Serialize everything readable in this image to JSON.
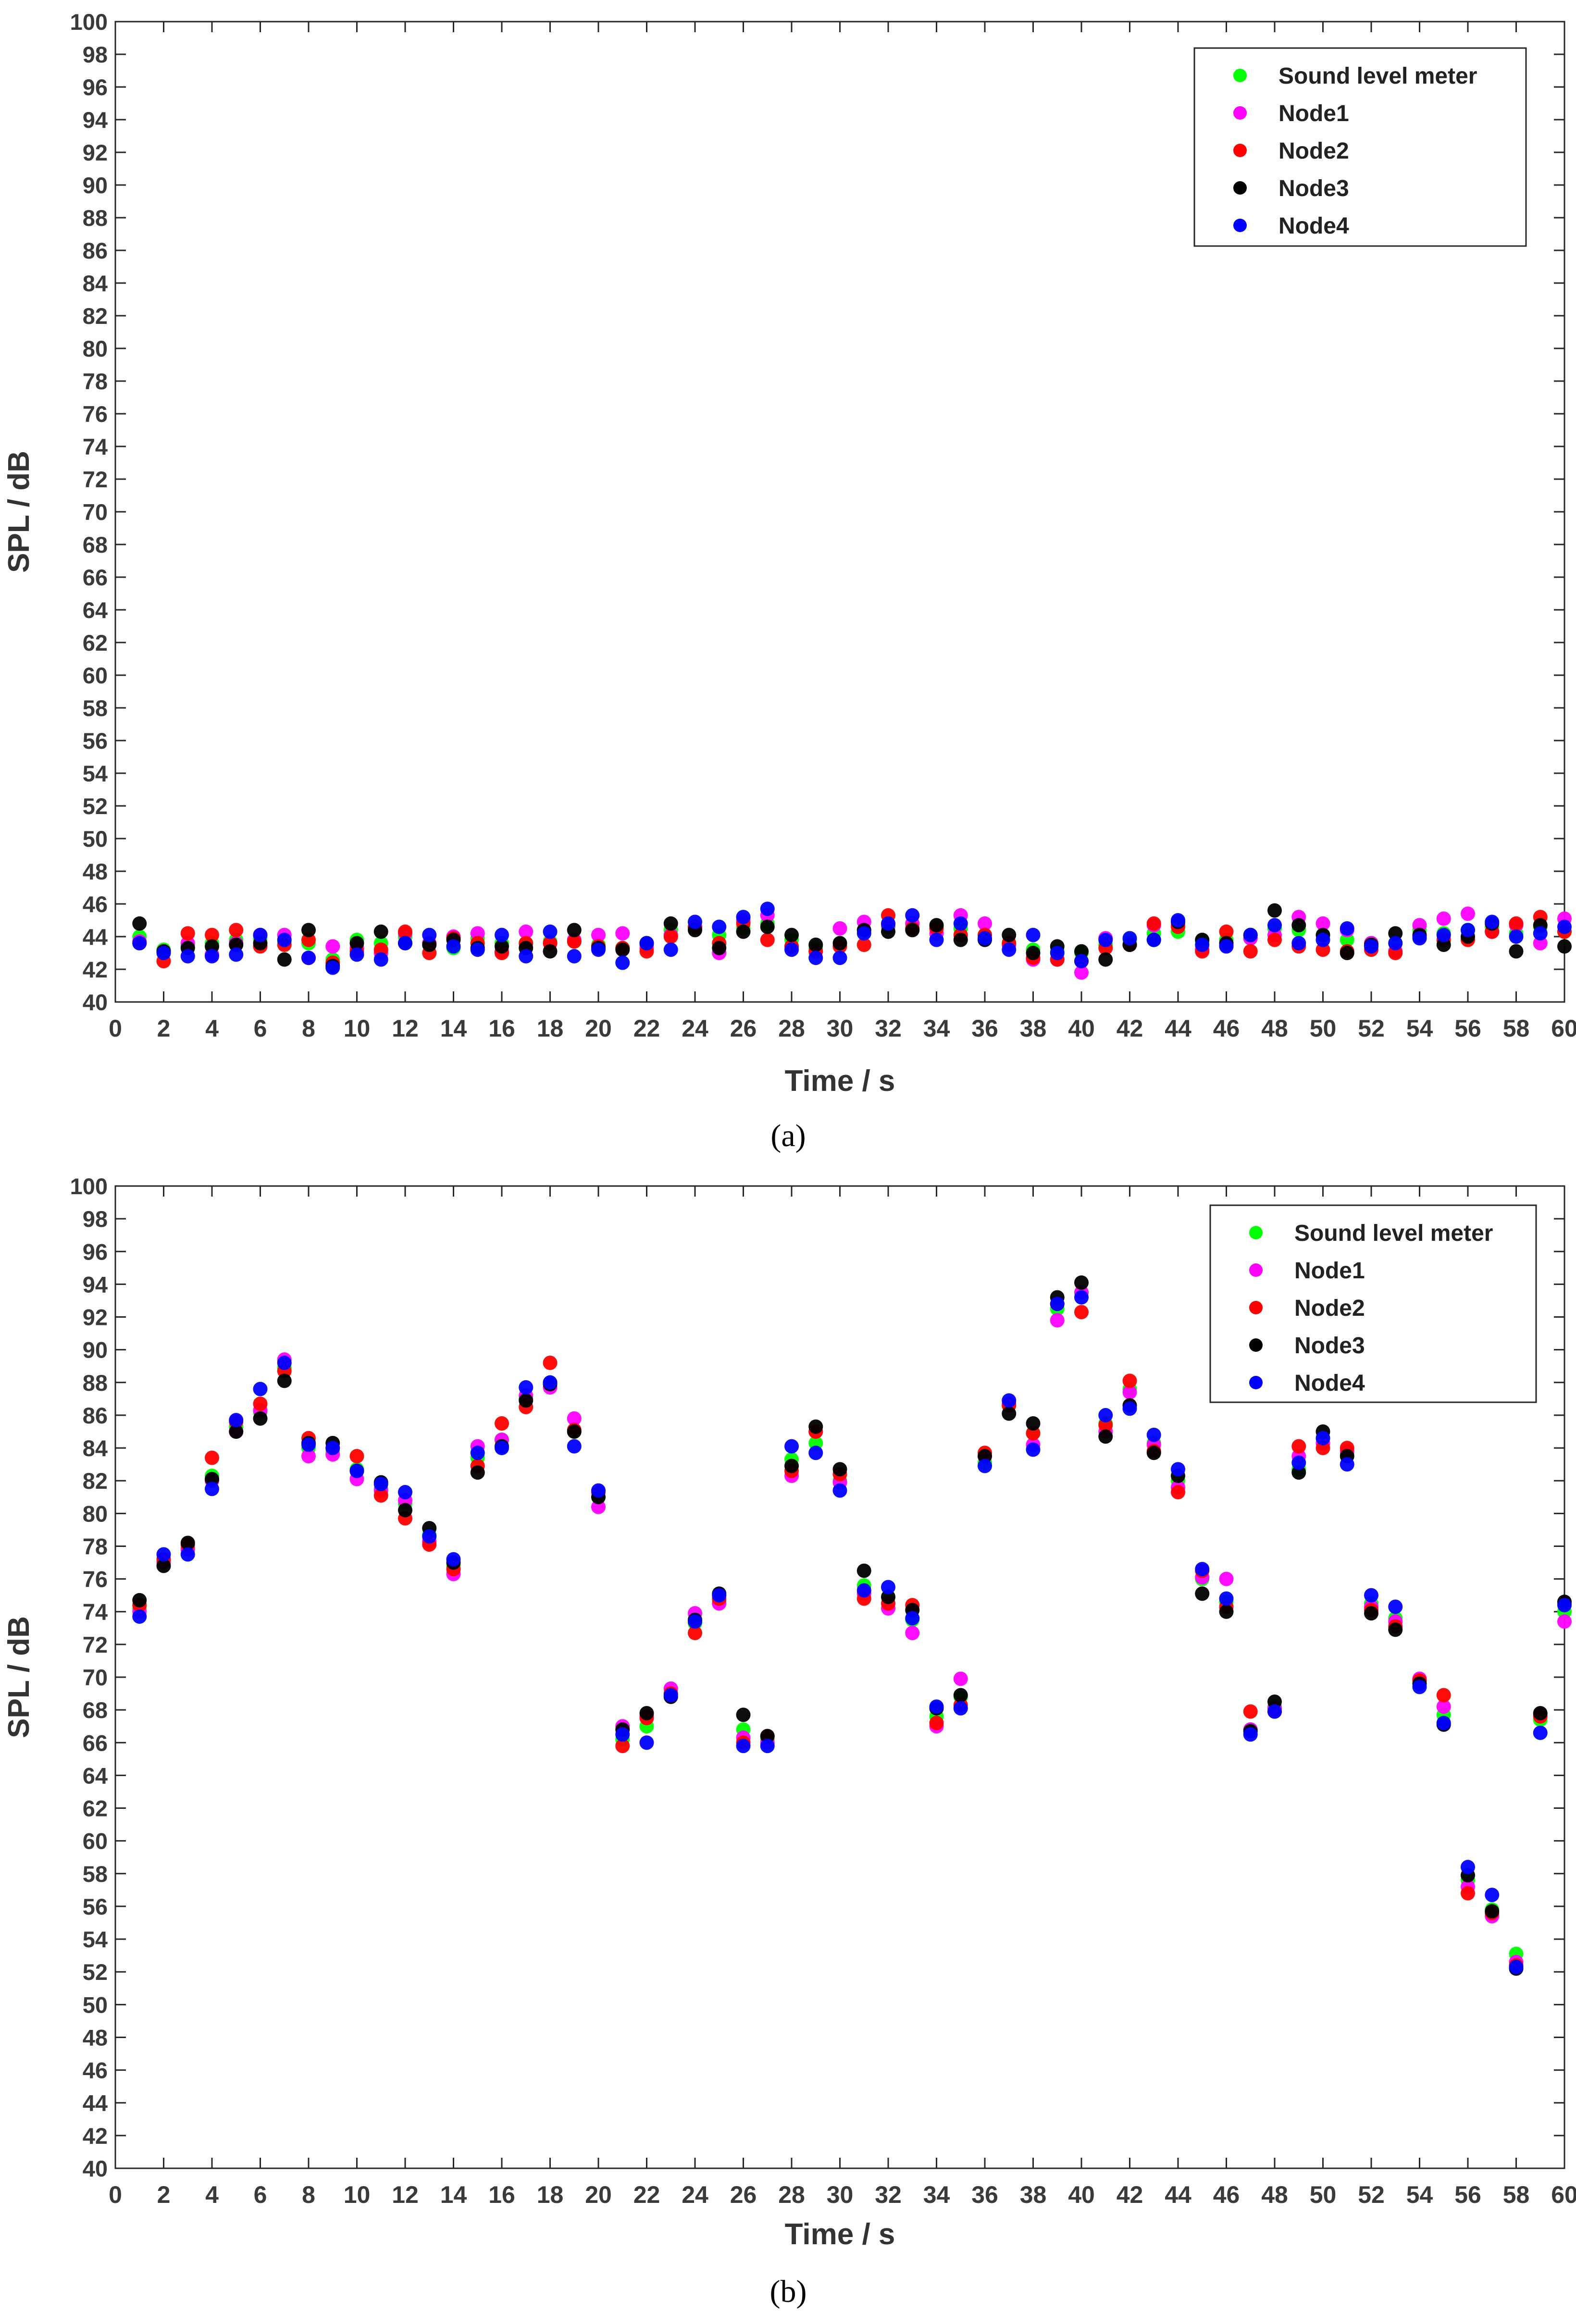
{
  "captions": [
    "(a)",
    "(b)"
  ],
  "chart_data": [
    {
      "type": "scatter",
      "caption": "(a)",
      "xlabel": "Time / s",
      "ylabel": "SPL / dB",
      "xlim": [
        0,
        60
      ],
      "ylim": [
        40,
        100
      ],
      "xticks": [
        0,
        2,
        4,
        6,
        8,
        10,
        12,
        14,
        16,
        18,
        20,
        22,
        24,
        26,
        28,
        30,
        32,
        34,
        36,
        38,
        40,
        42,
        44,
        46,
        48,
        50,
        52,
        54,
        56,
        58,
        60
      ],
      "yticks": [
        40,
        42,
        44,
        46,
        48,
        50,
        52,
        54,
        56,
        58,
        60,
        62,
        64,
        66,
        68,
        70,
        72,
        74,
        76,
        78,
        80,
        82,
        84,
        86,
        88,
        90,
        92,
        94,
        96,
        98,
        100
      ],
      "grid": false,
      "legend_position": "top-right",
      "x": [
        1,
        2,
        3,
        4,
        5,
        6,
        7,
        8,
        9,
        10,
        11,
        12,
        13,
        14,
        15,
        16,
        17,
        18,
        19,
        20,
        21,
        22,
        23,
        24,
        25,
        26,
        27,
        28,
        29,
        30,
        31,
        32,
        33,
        34,
        35,
        36,
        37,
        38,
        39,
        40,
        41,
        42,
        43,
        44,
        45,
        46,
        47,
        48,
        49,
        50,
        51,
        52,
        53,
        54,
        55,
        56,
        57,
        58,
        59,
        60
      ],
      "series": [
        {
          "name": "Sound level meter",
          "color": "#00ff00",
          "values": [
            44.0,
            43.2,
            43.4,
            43.6,
            43.8,
            43.9,
            43.7,
            43.6,
            42.6,
            43.8,
            43.6,
            44.0,
            43.6,
            43.3,
            43.9,
            43.6,
            43.6,
            43.7,
            43.7,
            43.5,
            43.3,
            43.5,
            44.4,
            44.5,
            44.1,
            44.5,
            44.8,
            43.8,
            43.3,
            43.6,
            44.4,
            44.6,
            44.8,
            44.6,
            44.5,
            44.1,
            43.6,
            43.2,
            43.1,
            43.0,
            43.5,
            43.8,
            44.2,
            44.3,
            43.7,
            43.8,
            43.9,
            44.5,
            44.4,
            44.1,
            43.8,
            43.6,
            43.6,
            44.4,
            44.2,
            44.4,
            44.6,
            44.2,
            44.6,
            44.3
          ]
        },
        {
          "name": "Node1",
          "color": "#ff00ff",
          "values": [
            43.7,
            43.1,
            43.6,
            42.9,
            43.6,
            44.1,
            44.1,
            42.7,
            43.4,
            43.3,
            43.0,
            44.2,
            43.6,
            44.0,
            44.2,
            43.1,
            44.3,
            43.6,
            43.8,
            44.1,
            44.2,
            43.3,
            44.1,
            44.6,
            43.0,
            45.0,
            45.3,
            43.4,
            43.1,
            44.5,
            44.9,
            44.7,
            44.8,
            44.2,
            45.3,
            44.8,
            43.5,
            42.6,
            42.6,
            41.8,
            43.9,
            43.5,
            44.7,
            44.7,
            43.2,
            43.5,
            43.9,
            44.1,
            45.2,
            44.8,
            44.4,
            43.6,
            43.1,
            44.7,
            45.1,
            45.4,
            44.3,
            44.7,
            43.6,
            45.1
          ]
        },
        {
          "name": "Node2",
          "color": "#ff0000",
          "values": [
            43.6,
            42.5,
            44.2,
            44.1,
            44.4,
            43.4,
            43.5,
            43.8,
            42.4,
            43.1,
            43.2,
            44.3,
            43.0,
            43.9,
            43.6,
            43.0,
            43.6,
            43.6,
            43.7,
            43.4,
            43.3,
            43.1,
            44.0,
            44.6,
            43.6,
            44.8,
            43.8,
            43.4,
            43.1,
            43.4,
            43.5,
            45.3,
            44.5,
            44.5,
            44.1,
            44.1,
            43.6,
            42.7,
            42.6,
            42.5,
            43.3,
            43.5,
            44.8,
            44.6,
            43.1,
            44.3,
            43.1,
            43.8,
            43.4,
            43.2,
            43.1,
            43.2,
            43.0,
            44.0,
            43.8,
            43.8,
            44.3,
            44.8,
            45.2,
            44.3
          ]
        },
        {
          "name": "Node3",
          "color": "#000000",
          "values": [
            44.8,
            43.1,
            43.3,
            43.4,
            43.5,
            43.6,
            42.6,
            44.4,
            42.2,
            43.6,
            44.3,
            43.6,
            43.5,
            43.8,
            43.3,
            43.4,
            43.3,
            43.1,
            44.4,
            43.3,
            43.2,
            43.6,
            44.8,
            44.4,
            43.3,
            44.3,
            44.6,
            44.1,
            43.5,
            43.6,
            44.4,
            44.3,
            44.4,
            44.7,
            43.8,
            43.8,
            44.1,
            43.0,
            43.4,
            43.1,
            42.6,
            43.5,
            43.8,
            44.9,
            43.8,
            43.6,
            44.1,
            45.6,
            44.7,
            44.1,
            43.0,
            43.5,
            44.2,
            44.1,
            43.5,
            44.0,
            44.8,
            43.1,
            44.7,
            43.4
          ]
        },
        {
          "name": "Node4",
          "color": "#0000ff",
          "values": [
            43.6,
            43.0,
            42.8,
            42.8,
            42.9,
            44.1,
            43.8,
            42.7,
            42.1,
            42.9,
            42.6,
            43.6,
            44.1,
            43.4,
            43.2,
            44.1,
            42.8,
            44.3,
            42.8,
            43.2,
            42.4,
            43.6,
            43.2,
            44.9,
            44.6,
            45.2,
            45.7,
            43.2,
            42.7,
            42.7,
            44.2,
            44.8,
            45.3,
            43.8,
            44.8,
            43.9,
            43.2,
            44.1,
            43.0,
            42.5,
            43.8,
            43.9,
            43.8,
            45.0,
            43.5,
            43.4,
            44.1,
            44.7,
            43.6,
            43.8,
            44.5,
            43.4,
            43.6,
            43.9,
            44.1,
            44.4,
            44.9,
            44.0,
            44.2,
            44.6
          ]
        }
      ]
    },
    {
      "type": "scatter",
      "caption": "(b)",
      "xlabel": "Time / s",
      "ylabel": "SPL / dB",
      "xlim": [
        0,
        60
      ],
      "ylim": [
        40,
        100
      ],
      "xticks": [
        0,
        2,
        4,
        6,
        8,
        10,
        12,
        14,
        16,
        18,
        20,
        22,
        24,
        26,
        28,
        30,
        32,
        34,
        36,
        38,
        40,
        42,
        44,
        46,
        48,
        50,
        52,
        54,
        56,
        58,
        60
      ],
      "yticks": [
        40,
        42,
        44,
        46,
        48,
        50,
        52,
        54,
        56,
        58,
        60,
        62,
        64,
        66,
        68,
        70,
        72,
        74,
        76,
        78,
        80,
        82,
        84,
        86,
        88,
        90,
        92,
        94,
        96,
        98,
        100
      ],
      "grid": false,
      "legend_position": "top-right",
      "x": [
        1,
        2,
        3,
        4,
        5,
        6,
        7,
        8,
        9,
        10,
        11,
        12,
        13,
        14,
        15,
        16,
        17,
        18,
        19,
        20,
        21,
        22,
        23,
        24,
        25,
        26,
        27,
        28,
        29,
        30,
        31,
        32,
        33,
        34,
        35,
        36,
        37,
        38,
        39,
        40,
        41,
        42,
        43,
        44,
        45,
        46,
        47,
        48,
        49,
        50,
        51,
        52,
        53,
        54,
        55,
        56,
        57,
        58,
        59,
        60
      ],
      "series": [
        {
          "name": "Sound level meter",
          "color": "#00ff00",
          "values": [
            74.2,
            77.2,
            77.9,
            82.3,
            85.3,
            86.2,
            88.9,
            84.0,
            83.8,
            82.7,
            81.5,
            80.6,
            78.7,
            76.8,
            83.4,
            84.5,
            87.0,
            88.0,
            85.0,
            81.0,
            66.2,
            67.0,
            69.0,
            73.3,
            74.6,
            66.8,
            66.2,
            83.3,
            84.3,
            82.0,
            75.6,
            74.9,
            73.5,
            67.6,
            68.8,
            83.1,
            86.6,
            84.9,
            92.5,
            93.5,
            85.5,
            87.6,
            84.3,
            82.0,
            76.0,
            74.6,
            66.8,
            68.2,
            82.7,
            84.6,
            83.6,
            74.5,
            73.6,
            69.8,
            67.7,
            57.6,
            55.8,
            53.1,
            67.4,
            74.0
          ]
        },
        {
          "name": "Node1",
          "color": "#ff00ff",
          "values": [
            74.0,
            77.0,
            77.8,
            82.0,
            85.0,
            86.3,
            89.4,
            83.5,
            83.6,
            82.1,
            81.4,
            80.8,
            78.3,
            76.3,
            84.1,
            84.5,
            87.2,
            87.7,
            85.8,
            80.4,
            67.0,
            67.6,
            69.3,
            73.9,
            74.5,
            66.3,
            66.0,
            82.3,
            85.0,
            81.9,
            75.1,
            74.2,
            72.7,
            67.0,
            69.9,
            83.5,
            86.7,
            84.2,
            91.8,
            93.5,
            85.0,
            87.4,
            84.2,
            81.6,
            76.1,
            76.0,
            66.8,
            68.1,
            83.5,
            84.3,
            83.8,
            74.3,
            73.4,
            69.9,
            68.2,
            57.2,
            55.4,
            52.6,
            67.7,
            73.4
          ]
        },
        {
          "name": "Node2",
          "color": "#ff0000",
          "values": [
            74.4,
            77.2,
            78.1,
            83.4,
            85.6,
            86.7,
            88.7,
            84.6,
            84.0,
            83.5,
            81.1,
            79.7,
            78.1,
            76.6,
            82.9,
            85.5,
            86.5,
            89.2,
            85.1,
            81.3,
            65.8,
            67.5,
            69.0,
            72.7,
            74.8,
            66.0,
            66.4,
            82.6,
            85.0,
            82.4,
            74.8,
            74.5,
            74.4,
            67.2,
            68.3,
            83.7,
            86.6,
            84.9,
            92.8,
            92.3,
            85.4,
            88.1,
            83.8,
            81.3,
            76.5,
            74.3,
            67.9,
            67.9,
            84.1,
            84.0,
            84.0,
            74.1,
            73.1,
            69.8,
            68.9,
            56.8,
            55.6,
            52.4,
            67.6,
            74.5
          ]
        },
        {
          "name": "Node3",
          "color": "#000000",
          "values": [
            74.7,
            76.8,
            78.2,
            82.1,
            85.0,
            85.8,
            88.1,
            84.3,
            84.3,
            82.6,
            81.9,
            80.2,
            79.1,
            77.0,
            82.5,
            84.1,
            86.9,
            87.9,
            85.0,
            81.0,
            66.8,
            67.8,
            68.8,
            73.5,
            75.1,
            67.7,
            66.4,
            82.9,
            85.3,
            82.7,
            76.5,
            74.9,
            74.1,
            68.1,
            68.9,
            83.5,
            86.1,
            85.5,
            93.2,
            94.1,
            84.7,
            86.6,
            83.7,
            82.3,
            75.1,
            74.0,
            66.7,
            68.5,
            82.5,
            85.0,
            83.5,
            73.9,
            72.9,
            69.6,
            67.1,
            57.9,
            55.7,
            52.2,
            67.8,
            74.6
          ]
        },
        {
          "name": "Node4",
          "color": "#0000ff",
          "values": [
            73.7,
            77.5,
            77.5,
            81.5,
            85.7,
            87.6,
            89.2,
            84.2,
            84.0,
            82.6,
            81.8,
            81.3,
            78.6,
            77.2,
            83.7,
            84.0,
            87.7,
            88.0,
            84.1,
            81.4,
            66.5,
            66.0,
            68.9,
            73.4,
            75.0,
            65.8,
            65.8,
            84.1,
            83.7,
            81.4,
            75.3,
            75.5,
            73.6,
            68.2,
            68.1,
            82.9,
            86.9,
            83.9,
            92.8,
            93.2,
            86.0,
            86.4,
            84.8,
            82.7,
            76.6,
            74.8,
            66.5,
            67.9,
            83.1,
            84.6,
            83.0,
            75.0,
            74.3,
            69.4,
            67.2,
            58.4,
            56.7,
            52.3,
            66.6,
            74.4
          ]
        }
      ]
    }
  ]
}
